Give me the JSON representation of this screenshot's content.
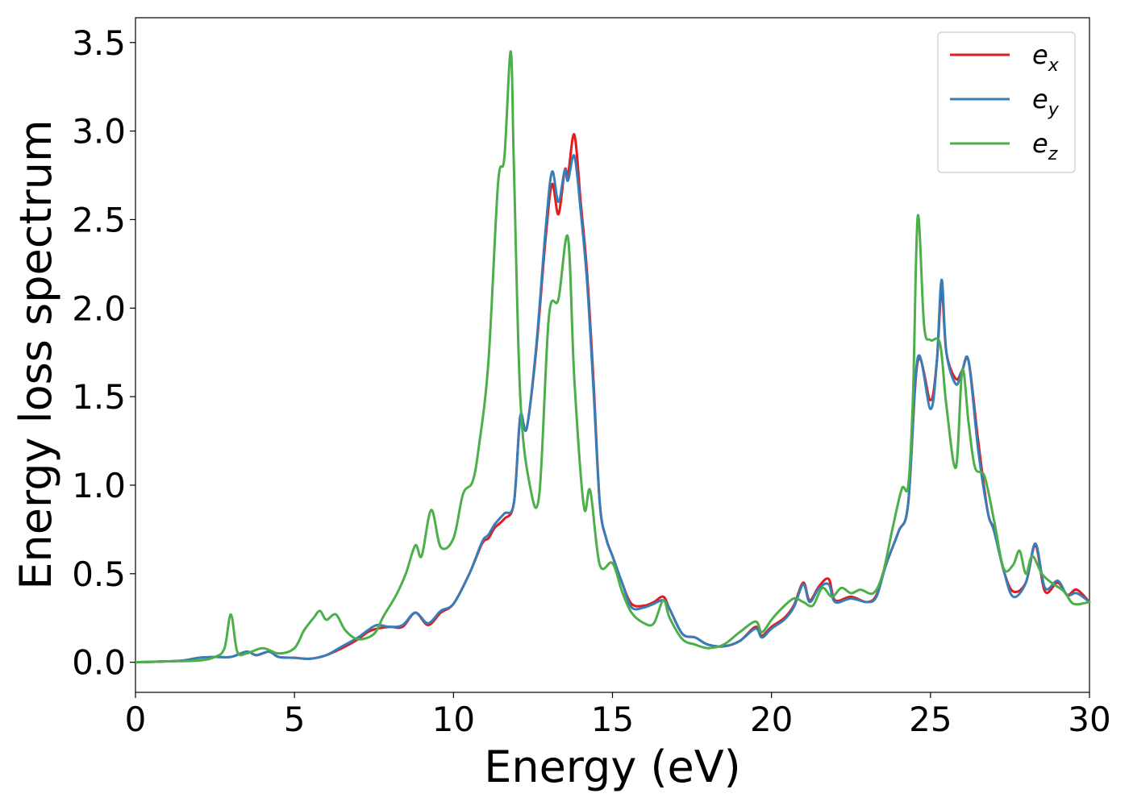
{
  "chart_data": {
    "type": "line",
    "title": "",
    "xlabel": "Energy (eV)",
    "ylabel": "Energy loss spectrum",
    "xlim": [
      0,
      30
    ],
    "ylim": [
      -0.17,
      3.64
    ],
    "xticks": [
      0,
      5,
      10,
      15,
      20,
      25,
      30
    ],
    "xtick_labels": [
      "0",
      "5",
      "10",
      "15",
      "20",
      "25",
      "30"
    ],
    "yticks": [
      0.0,
      0.5,
      1.0,
      1.5,
      2.0,
      2.5,
      3.0,
      3.5
    ],
    "ytick_labels": [
      "0.0",
      "0.5",
      "1.0",
      "1.5",
      "2.0",
      "2.5",
      "3.0",
      "3.5"
    ],
    "grid": false,
    "legend_position": "top-right",
    "series": [
      {
        "name": "e_x",
        "label_base": "e",
        "label_sub": "x",
        "color": "#e41a1c",
        "points": [
          [
            0,
            0
          ],
          [
            1,
            0.005
          ],
          [
            1.5,
            0.01
          ],
          [
            2,
            0.025
          ],
          [
            2.5,
            0.03
          ],
          [
            3,
            0.03
          ],
          [
            3.5,
            0.06
          ],
          [
            3.8,
            0.04
          ],
          [
            4.2,
            0.06
          ],
          [
            4.5,
            0.03
          ],
          [
            5,
            0.025
          ],
          [
            5.5,
            0.02
          ],
          [
            6,
            0.04
          ],
          [
            6.5,
            0.08
          ],
          [
            7,
            0.13
          ],
          [
            7.3,
            0.17
          ],
          [
            7.6,
            0.19
          ],
          [
            8,
            0.2
          ],
          [
            8.4,
            0.2
          ],
          [
            8.8,
            0.28
          ],
          [
            9.2,
            0.21
          ],
          [
            9.6,
            0.28
          ],
          [
            10,
            0.33
          ],
          [
            10.5,
            0.5
          ],
          [
            10.9,
            0.67
          ],
          [
            11.1,
            0.7
          ],
          [
            11.3,
            0.76
          ],
          [
            11.6,
            0.81
          ],
          [
            11.9,
            0.9
          ],
          [
            12.1,
            1.38
          ],
          [
            12.3,
            1.32
          ],
          [
            12.6,
            1.76
          ],
          [
            12.9,
            2.4
          ],
          [
            13.1,
            2.7
          ],
          [
            13.3,
            2.53
          ],
          [
            13.5,
            2.78
          ],
          [
            13.6,
            2.75
          ],
          [
            13.8,
            2.98
          ],
          [
            14,
            2.6
          ],
          [
            14.2,
            2.2
          ],
          [
            14.4,
            1.6
          ],
          [
            14.6,
            0.9
          ],
          [
            14.8,
            0.7
          ],
          [
            15,
            0.6
          ],
          [
            15.3,
            0.45
          ],
          [
            15.6,
            0.33
          ],
          [
            16,
            0.32
          ],
          [
            16.3,
            0.34
          ],
          [
            16.6,
            0.37
          ],
          [
            16.8,
            0.3
          ],
          [
            17.2,
            0.16
          ],
          [
            17.6,
            0.14
          ],
          [
            18,
            0.1
          ],
          [
            18.5,
            0.09
          ],
          [
            19,
            0.12
          ],
          [
            19.5,
            0.2
          ],
          [
            19.7,
            0.15
          ],
          [
            20,
            0.2
          ],
          [
            20.4,
            0.25
          ],
          [
            20.7,
            0.32
          ],
          [
            21,
            0.45
          ],
          [
            21.2,
            0.35
          ],
          [
            21.5,
            0.43
          ],
          [
            21.8,
            0.47
          ],
          [
            22,
            0.35
          ],
          [
            22.5,
            0.37
          ],
          [
            23,
            0.34
          ],
          [
            23.3,
            0.38
          ],
          [
            23.6,
            0.55
          ],
          [
            24,
            0.74
          ],
          [
            24.3,
            0.9
          ],
          [
            24.6,
            1.7
          ],
          [
            25,
            1.48
          ],
          [
            25.2,
            1.7
          ],
          [
            25.35,
            2.1
          ],
          [
            25.5,
            1.75
          ],
          [
            25.8,
            1.6
          ],
          [
            26,
            1.65
          ],
          [
            26.2,
            1.7
          ],
          [
            26.5,
            1.25
          ],
          [
            26.8,
            0.85
          ],
          [
            27,
            0.75
          ],
          [
            27.3,
            0.52
          ],
          [
            27.6,
            0.4
          ],
          [
            28,
            0.45
          ],
          [
            28.3,
            0.66
          ],
          [
            28.6,
            0.4
          ],
          [
            29,
            0.45
          ],
          [
            29.3,
            0.38
          ],
          [
            29.6,
            0.41
          ],
          [
            30,
            0.34
          ]
        ]
      },
      {
        "name": "e_y",
        "label_base": "e",
        "label_sub": "y",
        "color": "#377eb8",
        "points": [
          [
            0,
            0
          ],
          [
            1,
            0.005
          ],
          [
            1.5,
            0.01
          ],
          [
            2,
            0.025
          ],
          [
            2.5,
            0.03
          ],
          [
            3,
            0.03
          ],
          [
            3.5,
            0.06
          ],
          [
            3.8,
            0.04
          ],
          [
            4.2,
            0.06
          ],
          [
            4.5,
            0.03
          ],
          [
            5,
            0.025
          ],
          [
            5.5,
            0.02
          ],
          [
            6,
            0.04
          ],
          [
            6.5,
            0.09
          ],
          [
            7,
            0.14
          ],
          [
            7.3,
            0.18
          ],
          [
            7.6,
            0.21
          ],
          [
            8,
            0.2
          ],
          [
            8.4,
            0.21
          ],
          [
            8.8,
            0.28
          ],
          [
            9.2,
            0.22
          ],
          [
            9.6,
            0.29
          ],
          [
            10,
            0.33
          ],
          [
            10.5,
            0.5
          ],
          [
            10.9,
            0.68
          ],
          [
            11.1,
            0.72
          ],
          [
            11.3,
            0.78
          ],
          [
            11.6,
            0.84
          ],
          [
            11.9,
            0.9
          ],
          [
            12.1,
            1.39
          ],
          [
            12.3,
            1.32
          ],
          [
            12.6,
            1.78
          ],
          [
            12.9,
            2.45
          ],
          [
            13.1,
            2.77
          ],
          [
            13.3,
            2.6
          ],
          [
            13.5,
            2.78
          ],
          [
            13.6,
            2.72
          ],
          [
            13.8,
            2.86
          ],
          [
            14,
            2.55
          ],
          [
            14.2,
            2.15
          ],
          [
            14.4,
            1.55
          ],
          [
            14.6,
            0.9
          ],
          [
            14.8,
            0.7
          ],
          [
            15,
            0.6
          ],
          [
            15.3,
            0.45
          ],
          [
            15.6,
            0.31
          ],
          [
            16,
            0.31
          ],
          [
            16.3,
            0.33
          ],
          [
            16.6,
            0.35
          ],
          [
            16.8,
            0.3
          ],
          [
            17.2,
            0.16
          ],
          [
            17.6,
            0.14
          ],
          [
            18,
            0.1
          ],
          [
            18.5,
            0.09
          ],
          [
            19,
            0.12
          ],
          [
            19.5,
            0.19
          ],
          [
            19.7,
            0.14
          ],
          [
            20,
            0.19
          ],
          [
            20.4,
            0.24
          ],
          [
            20.7,
            0.31
          ],
          [
            21,
            0.44
          ],
          [
            21.2,
            0.34
          ],
          [
            21.5,
            0.42
          ],
          [
            21.8,
            0.44
          ],
          [
            22,
            0.34
          ],
          [
            22.5,
            0.36
          ],
          [
            23,
            0.34
          ],
          [
            23.3,
            0.37
          ],
          [
            23.6,
            0.55
          ],
          [
            24,
            0.74
          ],
          [
            24.3,
            0.9
          ],
          [
            24.6,
            1.72
          ],
          [
            25,
            1.43
          ],
          [
            25.2,
            1.7
          ],
          [
            25.35,
            2.16
          ],
          [
            25.5,
            1.75
          ],
          [
            25.8,
            1.57
          ],
          [
            26,
            1.65
          ],
          [
            26.2,
            1.7
          ],
          [
            26.5,
            1.2
          ],
          [
            26.8,
            0.85
          ],
          [
            27,
            0.74
          ],
          [
            27.3,
            0.52
          ],
          [
            27.6,
            0.37
          ],
          [
            28,
            0.45
          ],
          [
            28.3,
            0.67
          ],
          [
            28.6,
            0.42
          ],
          [
            29,
            0.46
          ],
          [
            29.3,
            0.38
          ],
          [
            29.6,
            0.39
          ],
          [
            30,
            0.34
          ]
        ]
      },
      {
        "name": "e_z",
        "label_base": "e",
        "label_sub": "z",
        "color": "#4daf4a",
        "points": [
          [
            0,
            0
          ],
          [
            1,
            0.005
          ],
          [
            2,
            0.01
          ],
          [
            2.5,
            0.03
          ],
          [
            2.8,
            0.08
          ],
          [
            3,
            0.27
          ],
          [
            3.2,
            0.06
          ],
          [
            3.5,
            0.05
          ],
          [
            4,
            0.08
          ],
          [
            4.5,
            0.05
          ],
          [
            5,
            0.08
          ],
          [
            5.3,
            0.18
          ],
          [
            5.6,
            0.25
          ],
          [
            5.8,
            0.29
          ],
          [
            6,
            0.24
          ],
          [
            6.3,
            0.27
          ],
          [
            6.6,
            0.18
          ],
          [
            7,
            0.13
          ],
          [
            7.5,
            0.16
          ],
          [
            7.8,
            0.26
          ],
          [
            8.2,
            0.38
          ],
          [
            8.5,
            0.5
          ],
          [
            8.8,
            0.66
          ],
          [
            9,
            0.6
          ],
          [
            9.3,
            0.86
          ],
          [
            9.6,
            0.65
          ],
          [
            10,
            0.7
          ],
          [
            10.3,
            0.95
          ],
          [
            10.6,
            1.02
          ],
          [
            10.8,
            1.22
          ],
          [
            11.1,
            1.7
          ],
          [
            11.4,
            2.7
          ],
          [
            11.6,
            2.85
          ],
          [
            11.8,
            3.45
          ],
          [
            11.9,
            2.8
          ],
          [
            12.1,
            1.5
          ],
          [
            12.4,
            1.0
          ],
          [
            12.7,
            0.95
          ],
          [
            13,
            1.95
          ],
          [
            13.3,
            2.05
          ],
          [
            13.6,
            2.4
          ],
          [
            13.8,
            1.6
          ],
          [
            14.1,
            0.88
          ],
          [
            14.3,
            0.97
          ],
          [
            14.6,
            0.55
          ],
          [
            15,
            0.56
          ],
          [
            15.3,
            0.4
          ],
          [
            15.6,
            0.28
          ],
          [
            16,
            0.22
          ],
          [
            16.3,
            0.22
          ],
          [
            16.6,
            0.35
          ],
          [
            16.8,
            0.25
          ],
          [
            17.2,
            0.13
          ],
          [
            17.6,
            0.1
          ],
          [
            18,
            0.08
          ],
          [
            18.5,
            0.1
          ],
          [
            19,
            0.17
          ],
          [
            19.5,
            0.23
          ],
          [
            19.7,
            0.17
          ],
          [
            20,
            0.24
          ],
          [
            20.3,
            0.3
          ],
          [
            20.7,
            0.36
          ],
          [
            21,
            0.34
          ],
          [
            21.3,
            0.32
          ],
          [
            21.6,
            0.42
          ],
          [
            21.9,
            0.37
          ],
          [
            22.2,
            0.42
          ],
          [
            22.5,
            0.39
          ],
          [
            22.8,
            0.41
          ],
          [
            23.2,
            0.39
          ],
          [
            23.5,
            0.5
          ],
          [
            23.8,
            0.75
          ],
          [
            24.1,
            0.98
          ],
          [
            24.3,
            1.0
          ],
          [
            24.45,
            1.5
          ],
          [
            24.6,
            2.52
          ],
          [
            24.8,
            1.9
          ],
          [
            25,
            1.82
          ],
          [
            25.3,
            1.8
          ],
          [
            25.5,
            1.45
          ],
          [
            25.8,
            1.1
          ],
          [
            26,
            1.65
          ],
          [
            26.2,
            1.35
          ],
          [
            26.4,
            1.1
          ],
          [
            26.7,
            1.05
          ],
          [
            27,
            0.8
          ],
          [
            27.3,
            0.53
          ],
          [
            27.6,
            0.55
          ],
          [
            27.8,
            0.63
          ],
          [
            28,
            0.5
          ],
          [
            28.2,
            0.6
          ],
          [
            28.5,
            0.5
          ],
          [
            28.8,
            0.45
          ],
          [
            29.2,
            0.4
          ],
          [
            29.5,
            0.33
          ],
          [
            30,
            0.34
          ]
        ]
      }
    ]
  }
}
